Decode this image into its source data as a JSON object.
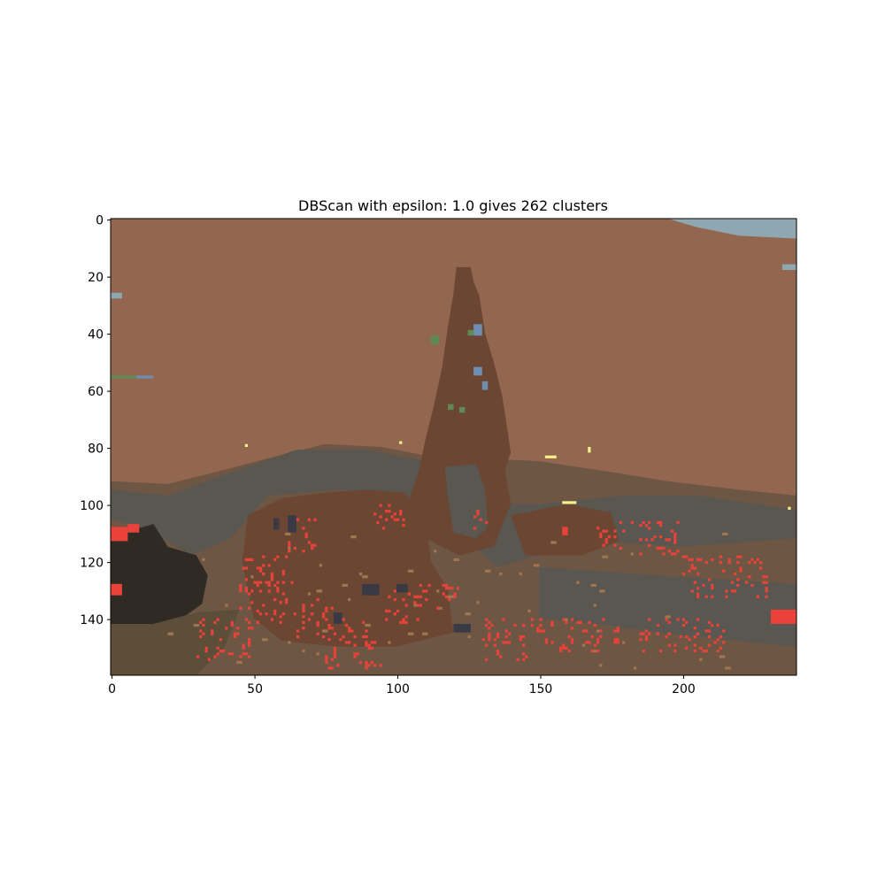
{
  "chart_data": {
    "type": "heatmap",
    "title": "DBScan with epsilon: 1.0 gives 262 clusters",
    "xlabel": "",
    "ylabel": "",
    "image_width": 240,
    "image_height": 160,
    "xlim": [
      -0.5,
      239.5
    ],
    "ylim": [
      159.5,
      -0.5
    ],
    "x_ticks": [
      0,
      50,
      100,
      150,
      200
    ],
    "y_ticks": [
      0,
      20,
      40,
      60,
      80,
      100,
      120,
      140
    ],
    "grid": false,
    "legend": "none",
    "colors": {
      "sky": "#936650",
      "peak": "#6b4633",
      "rock_shadow": "#5a5650",
      "ground": "#6e5644",
      "dark_rock": "#2f2b24",
      "olive": "#5c4e38",
      "red": "#e8423a",
      "blue_gray": "#8fa7b0",
      "blue": "#6e8fb0",
      "green": "#5f8a55",
      "yellow": "#f5f08a",
      "tan": "#a07650"
    }
  }
}
